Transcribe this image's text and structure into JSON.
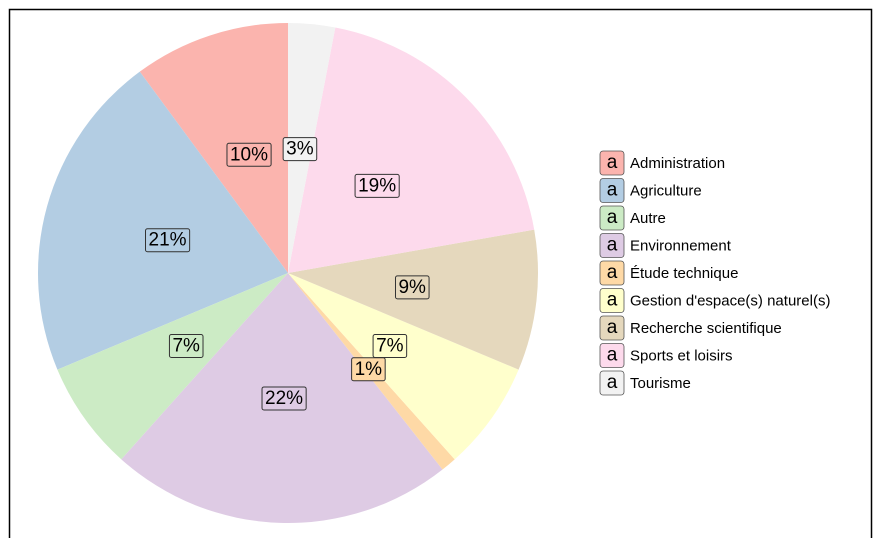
{
  "chart_data": {
    "type": "pie",
    "categories": [
      "Administration",
      "Agriculture",
      "Autre",
      "Environnement",
      "Étude technique",
      "Gestion d'espace(s) naturel(s)",
      "Recherche scientifique",
      "Sports et loisirs",
      "Tourisme"
    ],
    "values": [
      10,
      21,
      7,
      22,
      1,
      7,
      9,
      19,
      3
    ],
    "value_labels": [
      "10%",
      "21%",
      "7%",
      "22%",
      "1%",
      "7%",
      "9%",
      "19%",
      "3%"
    ],
    "colors": [
      "#fbb4ae",
      "#b3cde3",
      "#ccebc5",
      "#decbe4",
      "#fed9a6",
      "#ffffcc",
      "#e5d8bd",
      "#fddaec",
      "#f2f2f2"
    ],
    "legend_glyph": "a",
    "legend": "right"
  }
}
